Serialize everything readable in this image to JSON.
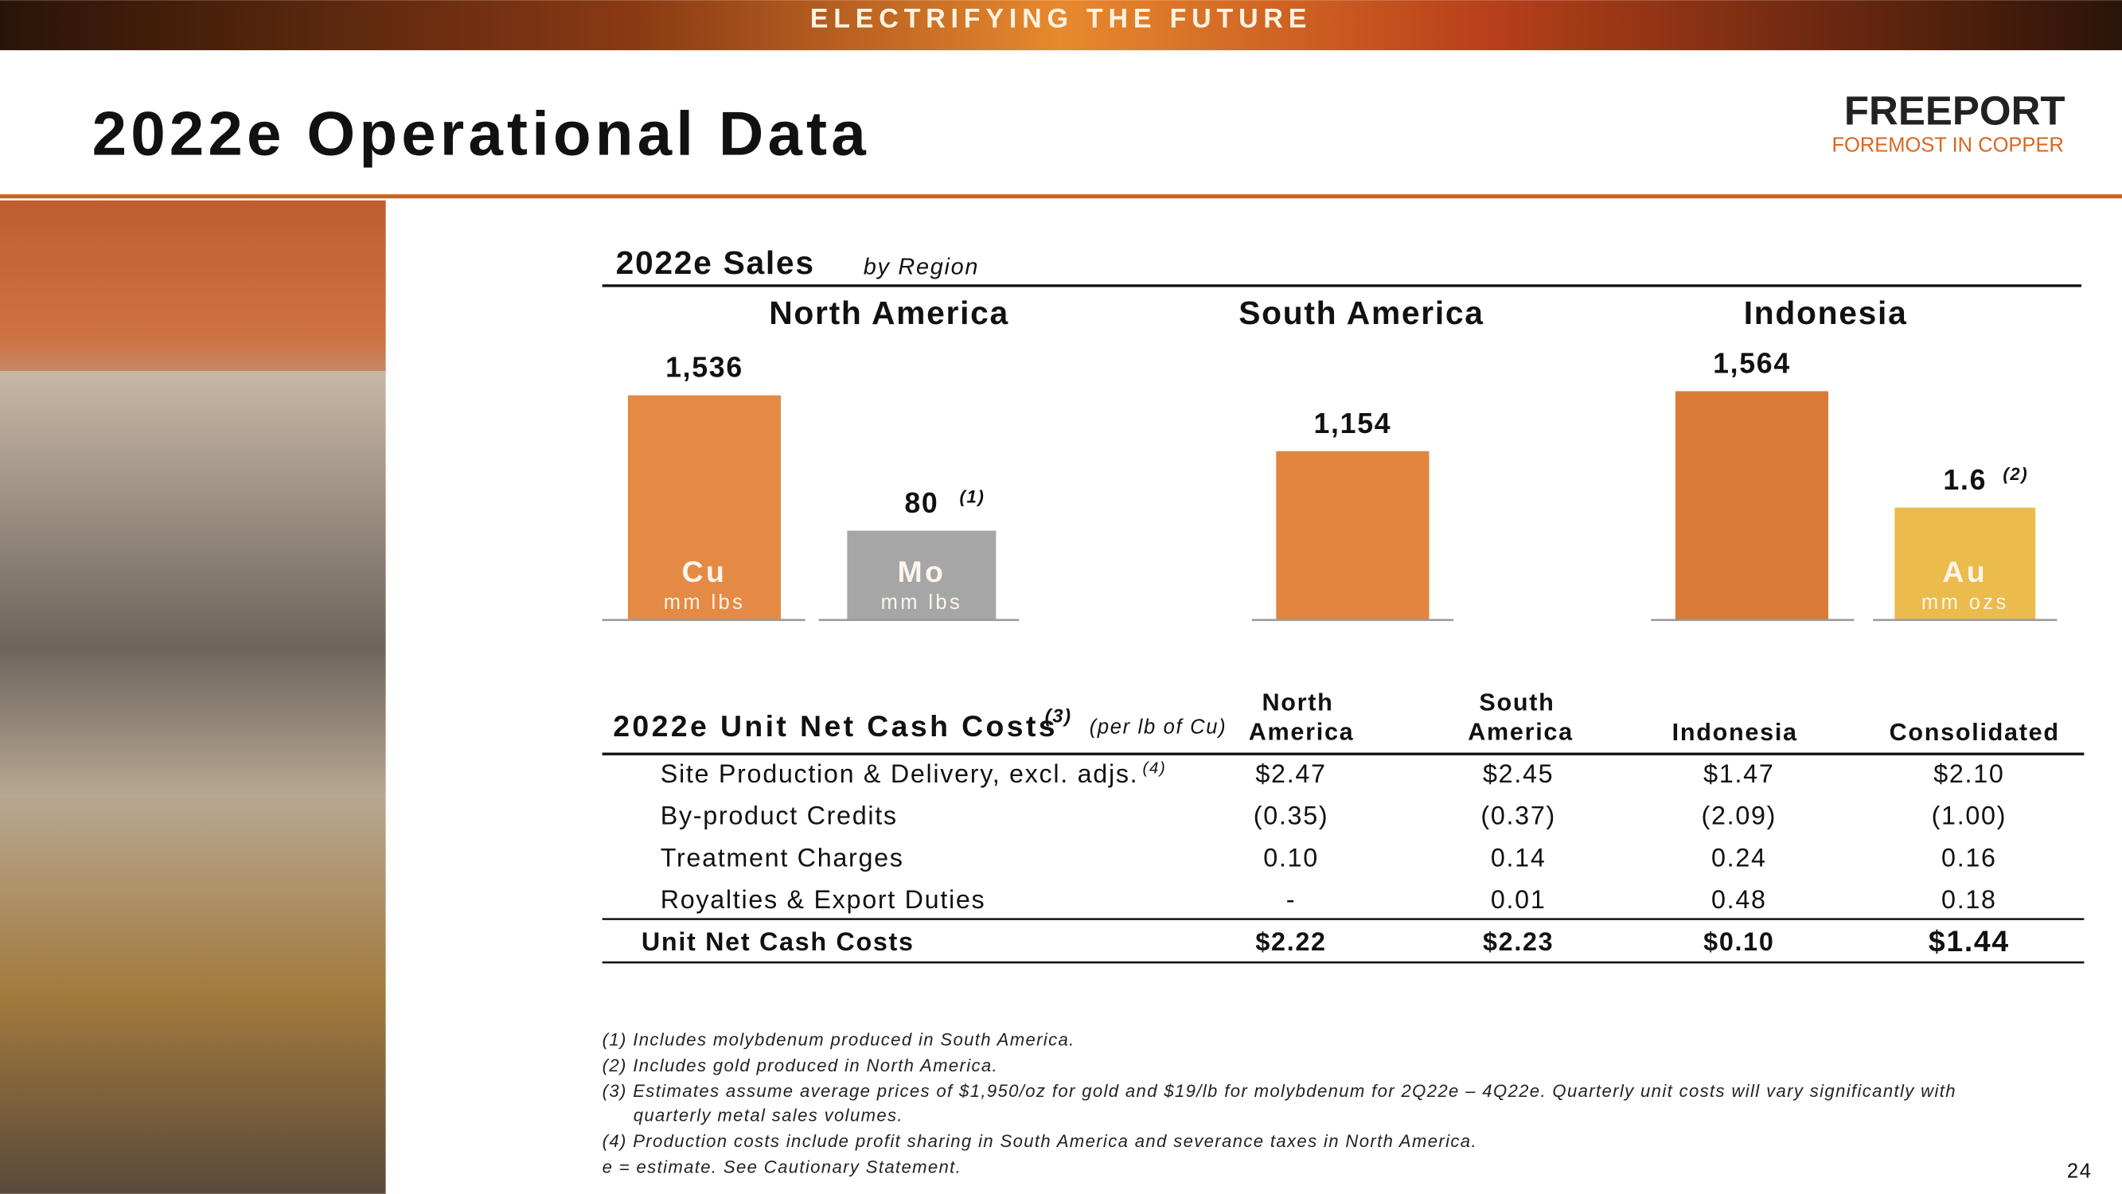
{
  "header": {
    "banner": "ELECTRIFYING THE FUTURE",
    "title": "2022e Operational Data",
    "logo": "FREEPORT",
    "tagline": "FOREMOST IN COPPER"
  },
  "sales": {
    "title": "2022e Sales",
    "subtitle": "by Region",
    "regions": [
      "North America",
      "South America",
      "Indonesia"
    ],
    "bars": [
      {
        "value": 1536,
        "value_label": "1,536",
        "metal": "Cu",
        "unit": "mm lbs",
        "color": "#e58a45"
      },
      {
        "value": 80,
        "note": "(1)",
        "metal": "Mo",
        "unit": "mm lbs",
        "color": "#a6a6a6"
      },
      {
        "value": 1154,
        "value_label": "1,154",
        "color": "#e1853f"
      },
      {
        "value": 1564,
        "value_label": "1,564",
        "color": "#d97b36"
      },
      {
        "value": 1.6,
        "note": "(2)",
        "metal": "Au",
        "unit": "mm ozs",
        "color": "#ebbb4c"
      }
    ]
  },
  "costs": {
    "title": "2022e Unit Net Cash Costs",
    "note": "(3)",
    "subtitle": "(per lb of Cu)",
    "columns": [
      "North America",
      "South America",
      "Indonesia",
      "Consolidated"
    ],
    "rows": [
      {
        "label": "Site Production & Delivery, excl. adjs.",
        "note": "(4)",
        "values": [
          "$2.47",
          "$2.45",
          "$1.47",
          "$2.10"
        ]
      },
      {
        "label": "By-product Credits",
        "values": [
          "(0.35)",
          "(0.37)",
          "(2.09)",
          "(1.00)"
        ]
      },
      {
        "label": "Treatment Charges",
        "values": [
          "0.10",
          "0.14",
          "0.24",
          "0.16"
        ]
      },
      {
        "label": "Royalties & Export Duties",
        "values": [
          "-",
          "0.01",
          "0.48",
          "0.18"
        ]
      }
    ],
    "total": {
      "label": "Unit Net Cash Costs",
      "values": [
        "$2.22",
        "$2.23",
        "$0.10",
        "$1.44"
      ]
    }
  },
  "footnotes": [
    "(1) Includes molybdenum produced in South America.",
    "(2) Includes gold produced in North America.",
    "(3) Estimates assume average prices of $1,950/oz for gold and $19/lb for molybdenum for 2Q22e – 4Q22e. Quarterly unit costs will vary significantly with",
    "quarterly metal sales volumes.",
    "(4) Production costs include profit sharing in South America and severance taxes in North America.",
    "e = estimate. See Cautionary Statement."
  ],
  "page_number": "24"
}
